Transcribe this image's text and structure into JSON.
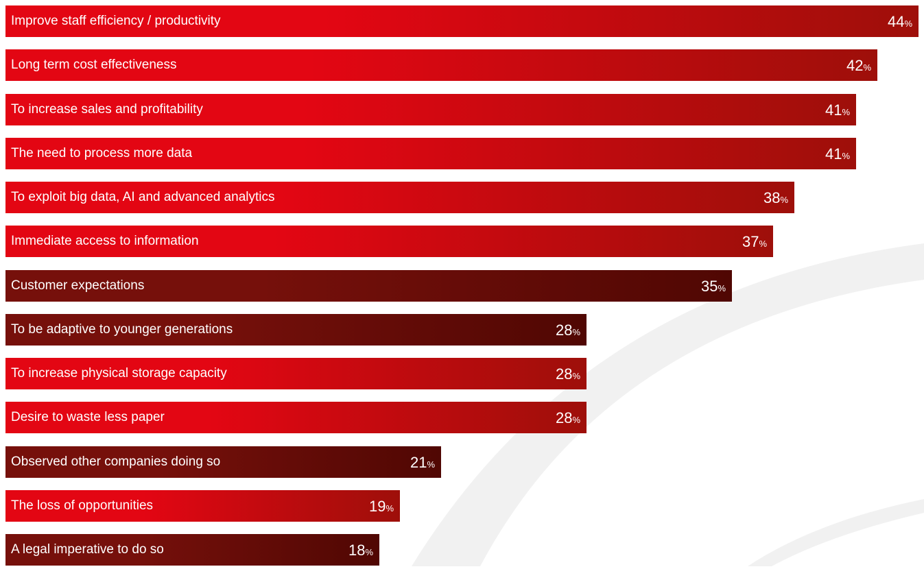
{
  "chart_data": {
    "type": "bar",
    "orientation": "horizontal",
    "categories": [
      "Improve staff efficiency / productivity",
      "Long term cost effectiveness",
      "To increase sales and profitability",
      "The need to process more data",
      "To exploit big data, AI and advanced analytics",
      "Immediate access to information",
      "Customer expectations",
      "To be adaptive to younger generations",
      "To increase physical storage capacity",
      "Desire to waste less paper",
      "Observed other companies doing so",
      "The loss of opportunities",
      "A legal imperative to do so"
    ],
    "values": [
      44,
      42,
      41,
      41,
      38,
      37,
      35,
      28,
      28,
      28,
      21,
      19,
      18
    ],
    "unit": "%",
    "bar_styles": [
      "bright",
      "bright",
      "bright",
      "bright",
      "bright",
      "bright",
      "dark",
      "dark",
      "bright",
      "bright",
      "dark",
      "bright",
      "dark"
    ],
    "title": "",
    "xlabel": "",
    "ylabel": "",
    "xlim": [
      0,
      44
    ],
    "grid": false,
    "legend": "none"
  },
  "colors": {
    "bright_start": "#e30613",
    "bright_end": "#9e0f0a",
    "dark_start": "#76100b",
    "dark_end": "#500703",
    "background_arc": "#f1f1f1",
    "text": "#ffffff"
  }
}
